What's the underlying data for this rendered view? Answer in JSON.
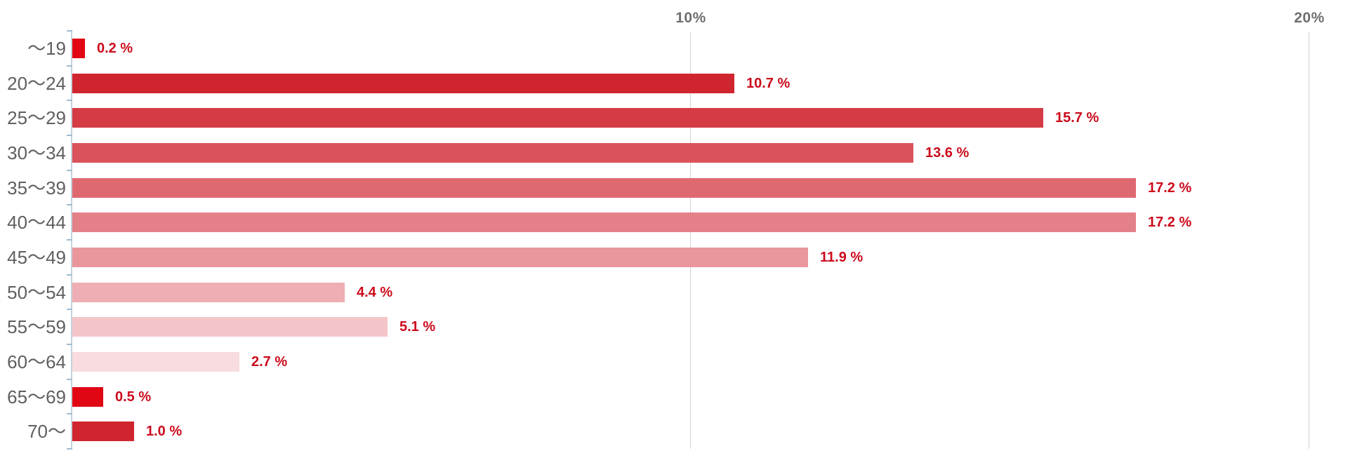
{
  "chart_data": {
    "type": "bar",
    "orientation": "horizontal",
    "title": "",
    "xlabel": "",
    "ylabel": "",
    "categories": [
      "〜19",
      "20〜24",
      "25〜29",
      "30〜34",
      "35〜39",
      "40〜44",
      "45〜49",
      "50〜54",
      "55〜59",
      "60〜64",
      "65〜69",
      "70〜"
    ],
    "values": [
      0.2,
      10.7,
      15.7,
      13.6,
      17.2,
      17.2,
      11.9,
      4.4,
      5.1,
      2.7,
      0.5,
      1.0
    ],
    "value_labels": [
      "0.2 %",
      "10.7 %",
      "15.7 %",
      "13.6 %",
      "17.2 %",
      "17.2 %",
      "11.9 %",
      "4.4 %",
      "5.1 %",
      "2.7 %",
      "0.5 %",
      "1.0 %"
    ],
    "bar_colors": [
      "#e00613",
      "#d0252f",
      "#d53b45",
      "#da525b",
      "#df6971",
      "#e48087",
      "#e9979d",
      "#eeaeb3",
      "#f3c5c9",
      "#f8dcdf",
      "#e00613",
      "#d0252f"
    ],
    "x_axis": {
      "min": 0,
      "max": 20.95,
      "ticks": [
        {
          "value": 10,
          "label": "10%"
        },
        {
          "value": 20,
          "label": "20%"
        }
      ]
    },
    "grid": true,
    "legend_position": "none",
    "colors": {
      "background": "#ffffff",
      "gridline": "#d2d2d2",
      "axis_line": "#c2d3e0",
      "axis_tick": "#9fbbd0",
      "category_label": "#5f5f5f",
      "axis_top_label": "#6f6f6f",
      "value_label": "#cc0b1c"
    }
  }
}
